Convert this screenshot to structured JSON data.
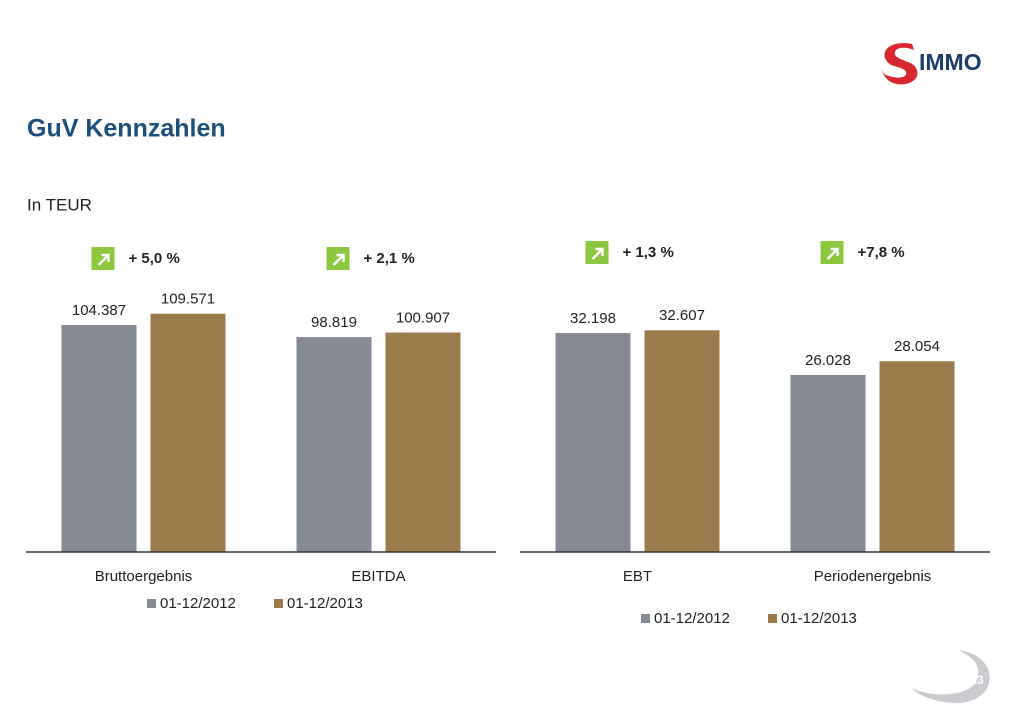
{
  "header": {
    "title": "GuV Kennzahlen",
    "subtitle": "In TEUR"
  },
  "logo_text": "IMMO",
  "page_number": "13",
  "chart_data": [
    {
      "type": "bar",
      "categories": [
        "Bruttoergebnis",
        "EBITDA"
      ],
      "annotations": [
        "+ 5,0 %",
        "+ 2,1 %"
      ],
      "series": [
        {
          "name": "01-12/2012",
          "color": "#858a94",
          "values": [
            104387,
            98819
          ],
          "value_labels": [
            "104.387",
            "98.819"
          ]
        },
        {
          "name": "01-12/2013",
          "color": "#9b7b4b",
          "values": [
            109571,
            100907
          ],
          "value_labels": [
            "109.571",
            "100.907"
          ]
        }
      ],
      "ylim": [
        0,
        120000
      ]
    },
    {
      "type": "bar",
      "categories": [
        "EBT",
        "Periodenergebnis"
      ],
      "annotations": [
        "+ 1,3 %",
        "+7,8 %"
      ],
      "series": [
        {
          "name": "01-12/2012",
          "color": "#858a94",
          "values": [
            32198,
            26028
          ],
          "value_labels": [
            "32.198",
            "26.028"
          ]
        },
        {
          "name": "01-12/2013",
          "color": "#9b7b4b",
          "values": [
            32607,
            28054
          ],
          "value_labels": [
            "32.607",
            "28.054"
          ]
        }
      ],
      "ylim": [
        0,
        40000
      ]
    }
  ]
}
